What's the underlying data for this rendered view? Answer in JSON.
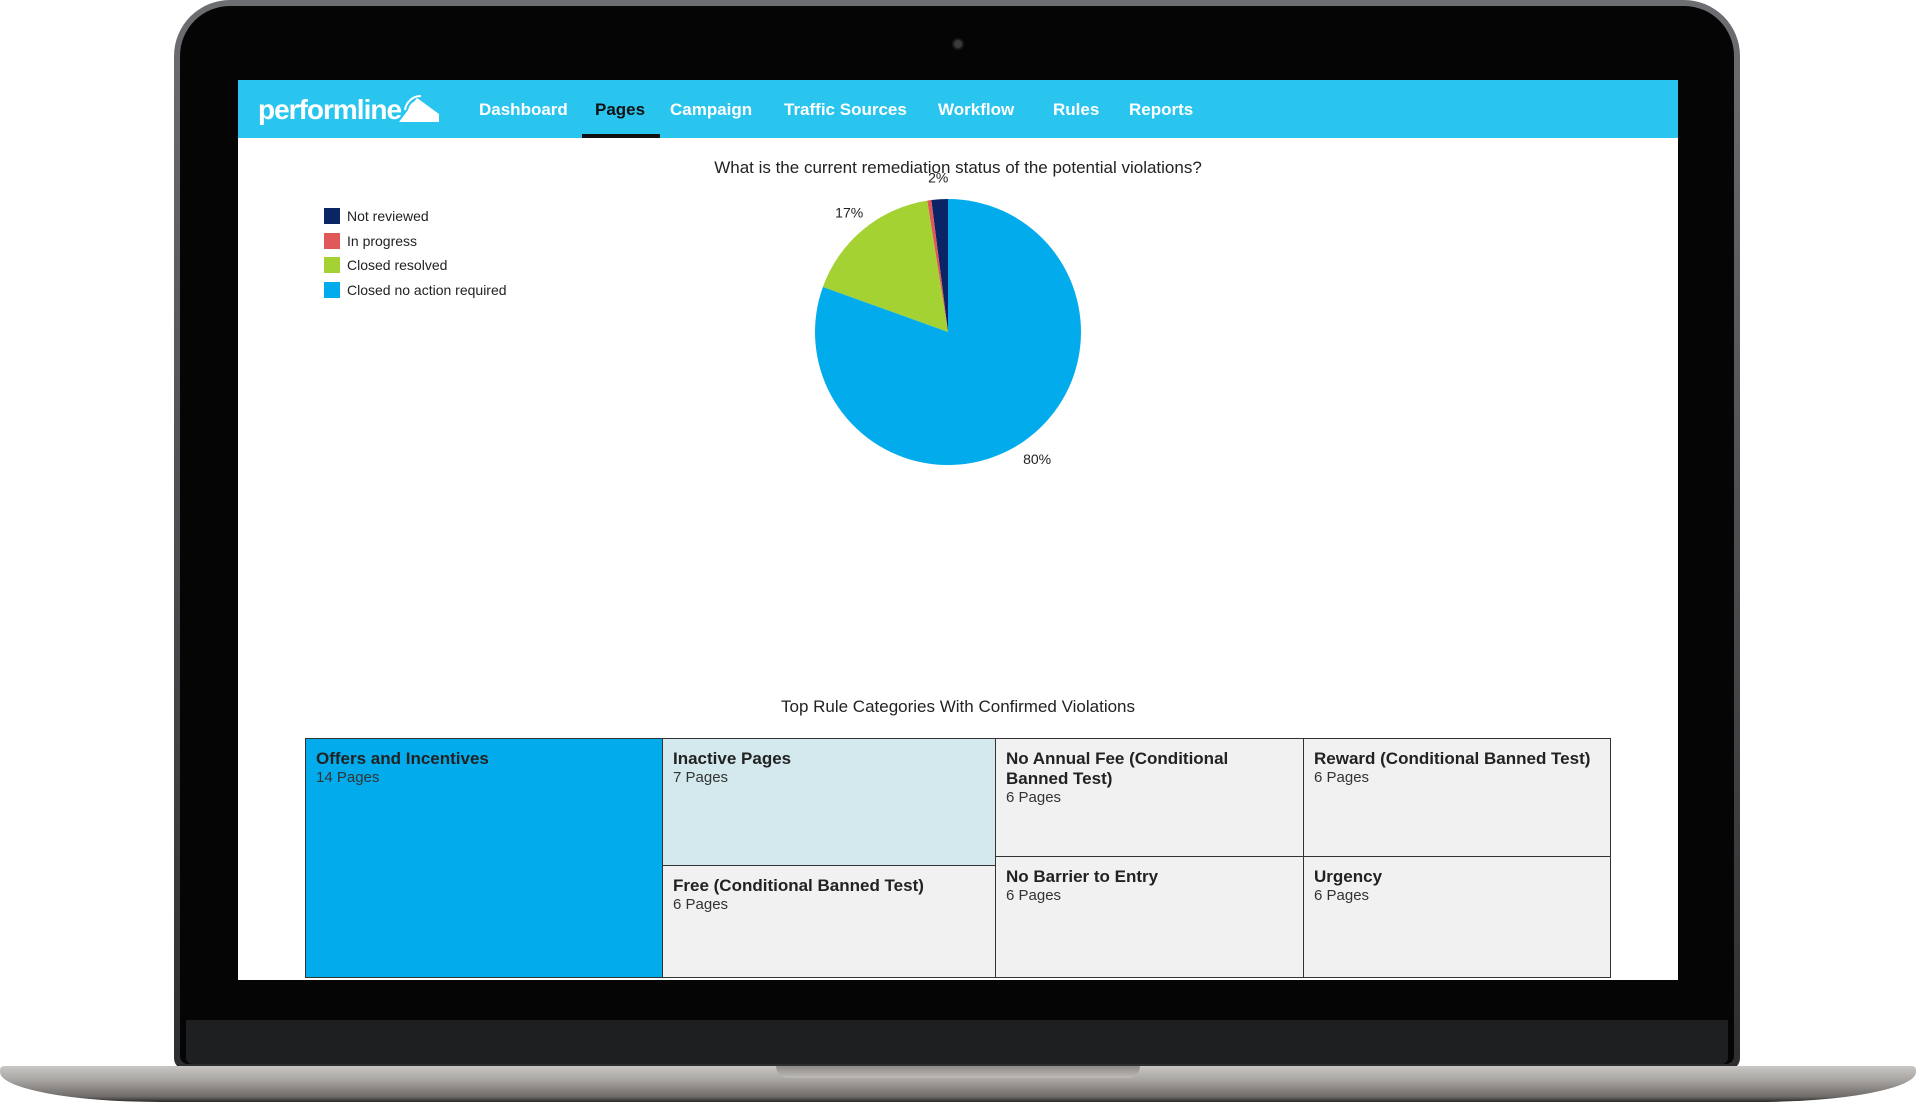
{
  "app": {
    "logo_text": "performline"
  },
  "nav": {
    "items": [
      {
        "label": "Dashboard"
      },
      {
        "label": "Pages"
      },
      {
        "label": "Campaign"
      },
      {
        "label": "Traffic Sources"
      },
      {
        "label": "Workflow"
      },
      {
        "label": "Rules"
      },
      {
        "label": "Reports"
      }
    ],
    "active": "Pages"
  },
  "chart_data": [
    {
      "type": "pie",
      "title": "What is the current remediation status of the potential violations?",
      "legend_position": "top-left",
      "slices": [
        {
          "label": "Not reviewed",
          "value": 2,
          "color": "#0b2466",
          "data_label": "2%"
        },
        {
          "label": "In progress",
          "value": 0.5,
          "color": "#e0585a",
          "data_label": ""
        },
        {
          "label": "Closed resolved",
          "value": 17,
          "color": "#a4d233",
          "data_label": "17%"
        },
        {
          "label": "Closed no action required",
          "value": 80.5,
          "color": "#02acec",
          "data_label": "80%"
        }
      ]
    },
    {
      "type": "treemap",
      "title": "Top Rule Categories With Confirmed Violations",
      "cells": [
        {
          "name": "Offers and Incentives",
          "value": 14,
          "value_label": "14 Pages",
          "color": "#02acec"
        },
        {
          "name": "Inactive Pages",
          "value": 7,
          "value_label": "7 Pages",
          "color": "#d3e9ee"
        },
        {
          "name": "Free (Conditional Banned Test)",
          "value": 6,
          "value_label": "6 Pages",
          "color": "#f1f1f1"
        },
        {
          "name": "No Annual Fee (Conditional Banned Test)",
          "value": 6,
          "value_label": "6 Pages",
          "color": "#f1f1f1"
        },
        {
          "name": "No Barrier to Entry",
          "value": 6,
          "value_label": "6 Pages",
          "color": "#f1f1f1"
        },
        {
          "name": "Reward (Conditional Banned Test)",
          "value": 6,
          "value_label": "6 Pages",
          "color": "#f1f1f1"
        },
        {
          "name": "Urgency",
          "value": 6,
          "value_label": "6 Pages",
          "color": "#f1f1f1"
        }
      ]
    }
  ]
}
